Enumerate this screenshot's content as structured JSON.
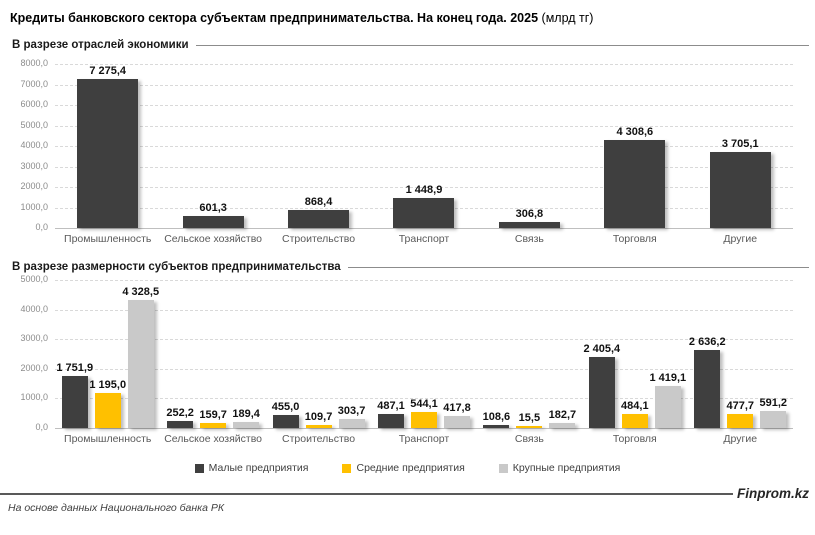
{
  "title": {
    "main": "Кредиты банковского сектора субъектам предпринимательства. На конец года. 2025",
    "unit": "(млрд тг)"
  },
  "footer": {
    "source": "На основе данных Национального банка РК",
    "brand": "Finprom.kz"
  },
  "chart_data": [
    {
      "type": "bar",
      "title": "В разрезе отраслей экономики",
      "categories": [
        "Промышленность",
        "Сельское хозяйство",
        "Строительство",
        "Транспорт",
        "Связь",
        "Торговля",
        "Другие"
      ],
      "values": [
        7275.4,
        601.3,
        868.4,
        1448.9,
        306.8,
        4308.6,
        3705.1
      ],
      "labels": [
        "7 275,4",
        "601,3",
        "868,4",
        "1 448,9",
        "306,8",
        "4 308,6",
        "3 705,1"
      ],
      "bar_color": "#3f3f3f",
      "ylim": [
        0,
        8000
      ],
      "ytick_step": 1000,
      "grid": true,
      "legend_position": "none",
      "xlabel": "",
      "ylabel": ""
    },
    {
      "type": "bar",
      "title": "В разрезе размерности субъектов предпринимательства",
      "categories": [
        "Промышленность",
        "Сельское хозяйство",
        "Строительство",
        "Транспорт",
        "Связь",
        "Торговля",
        "Другие"
      ],
      "series": [
        {
          "name": "Малые предприятия",
          "color": "#3f3f3f",
          "values": [
            1751.9,
            252.2,
            455.0,
            487.1,
            108.6,
            2405.4,
            2636.2
          ],
          "labels": [
            "1 751,9",
            "252,2",
            "455,0",
            "487,1",
            "108,6",
            "2 405,4",
            "2 636,2"
          ]
        },
        {
          "name": "Средние предприятия",
          "color": "#ffc000",
          "values": [
            1195.0,
            159.7,
            109.7,
            544.1,
            15.5,
            484.1,
            477.7
          ],
          "labels": [
            "1 195,0",
            "159,7",
            "109,7",
            "544,1",
            "15,5",
            "484,1",
            "477,7"
          ]
        },
        {
          "name": "Крупные предприятия",
          "color": "#c9c9c9",
          "values": [
            4328.5,
            189.4,
            303.7,
            417.8,
            182.7,
            1419.1,
            591.2
          ],
          "labels": [
            "4 328,5",
            "189,4",
            "303,7",
            "417,8",
            "182,7",
            "1 419,1",
            "591,2"
          ]
        }
      ],
      "ylim": [
        0,
        5000
      ],
      "ytick_step": 1000,
      "grid": true,
      "legend_position": "bottom",
      "xlabel": "",
      "ylabel": ""
    }
  ]
}
